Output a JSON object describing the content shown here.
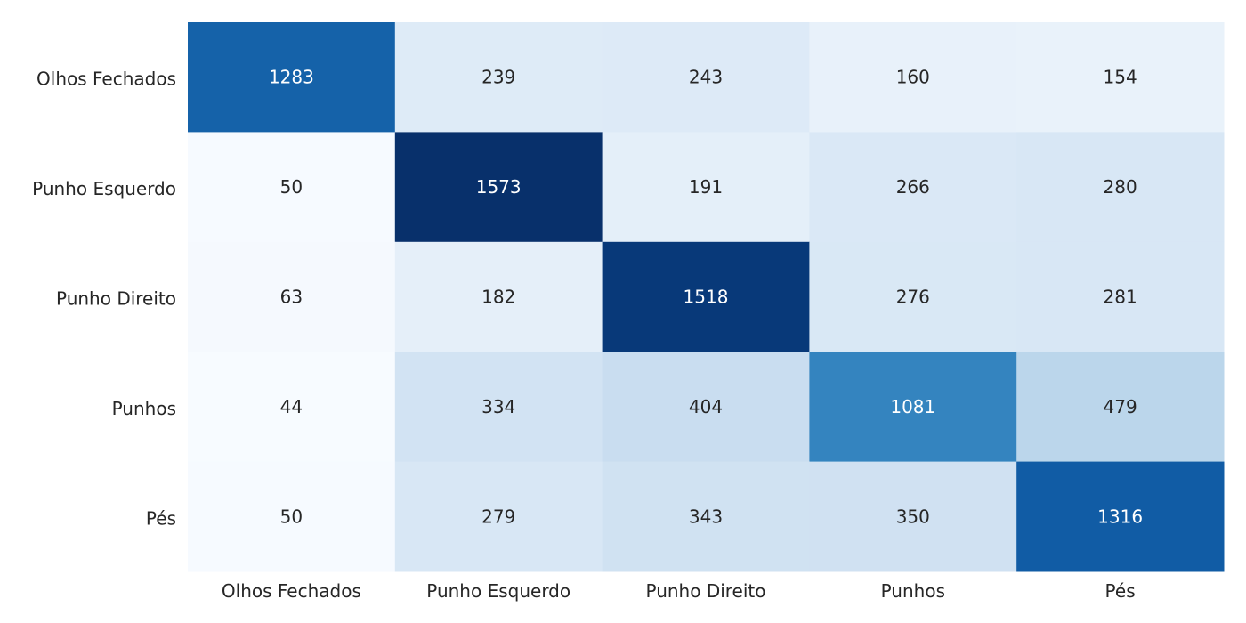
{
  "chart_data": {
    "type": "heatmap",
    "title": "",
    "xlabel": "",
    "ylabel": "",
    "rows": [
      "Olhos Fechados",
      "Punho Esquerdo",
      "Punho Direito",
      "Punhos",
      "Pés"
    ],
    "columns": [
      "Olhos Fechados",
      "Punho Esquerdo",
      "Punho Direito",
      "Punhos",
      "Pés"
    ],
    "values": [
      [
        1283,
        239,
        243,
        160,
        154
      ],
      [
        50,
        1573,
        191,
        266,
        280
      ],
      [
        63,
        182,
        1518,
        276,
        281
      ],
      [
        44,
        334,
        404,
        1081,
        479
      ],
      [
        50,
        279,
        343,
        350,
        1316
      ]
    ],
    "colormap": "Blues",
    "color_range": [
      44,
      1573
    ],
    "colorbar": false,
    "annotations": true
  }
}
